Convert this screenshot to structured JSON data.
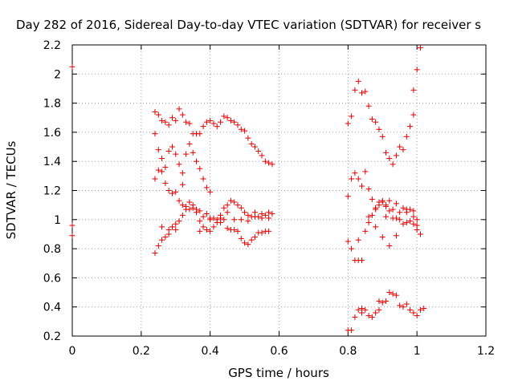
{
  "chart_data": {
    "type": "scatter",
    "title": "Day 282 of 2016, Sidereal Day-to-day VTEC variation (SDTVAR) for receiver s",
    "xlabel": "GPS time / hours",
    "ylabel": "SDTVAR / TECUs",
    "xlim": [
      0,
      1.2
    ],
    "ylim": [
      0.2,
      2.2
    ],
    "xticks": [
      0,
      0.2,
      0.4,
      0.6,
      0.8,
      1,
      1.2
    ],
    "yticks": [
      0.2,
      0.4,
      0.6,
      0.8,
      1,
      1.2,
      1.4,
      1.6,
      1.8,
      2,
      2.2
    ],
    "xtick_labels": [
      "0",
      "0.2",
      "0.4",
      "0.6",
      "0.8",
      "1",
      "1.2"
    ],
    "ytick_labels": [
      "0.2",
      "0.4",
      "0.6",
      "0.8",
      "1",
      "1.2",
      "1.4",
      "1.6",
      "1.8",
      "2",
      "2.2"
    ],
    "grid": true,
    "marker": "plus",
    "color": "#e00000",
    "series": [
      {
        "points": [
          [
            0.0,
            2.05
          ],
          [
            0.0,
            0.96
          ],
          [
            0.0,
            0.89
          ],
          [
            0.24,
            1.74
          ],
          [
            0.25,
            1.72
          ],
          [
            0.26,
            1.68
          ],
          [
            0.27,
            1.67
          ],
          [
            0.28,
            1.65
          ],
          [
            0.29,
            1.7
          ],
          [
            0.3,
            1.68
          ],
          [
            0.31,
            1.76
          ],
          [
            0.32,
            1.72
          ],
          [
            0.33,
            1.67
          ],
          [
            0.34,
            1.66
          ],
          [
            0.35,
            1.59
          ],
          [
            0.36,
            1.59
          ],
          [
            0.37,
            1.59
          ],
          [
            0.38,
            1.64
          ],
          [
            0.39,
            1.67
          ],
          [
            0.4,
            1.68
          ],
          [
            0.41,
            1.66
          ],
          [
            0.42,
            1.64
          ],
          [
            0.43,
            1.67
          ],
          [
            0.44,
            1.71
          ],
          [
            0.45,
            1.7
          ],
          [
            0.46,
            1.68
          ],
          [
            0.47,
            1.67
          ],
          [
            0.48,
            1.65
          ],
          [
            0.49,
            1.62
          ],
          [
            0.5,
            1.61
          ],
          [
            0.51,
            1.56
          ],
          [
            0.52,
            1.52
          ],
          [
            0.53,
            1.5
          ],
          [
            0.54,
            1.47
          ],
          [
            0.55,
            1.44
          ],
          [
            0.56,
            1.4
          ],
          [
            0.57,
            1.39
          ],
          [
            0.58,
            1.38
          ],
          [
            0.24,
            1.59
          ],
          [
            0.25,
            1.48
          ],
          [
            0.26,
            1.42
          ],
          [
            0.27,
            1.36
          ],
          [
            0.28,
            1.47
          ],
          [
            0.29,
            1.5
          ],
          [
            0.3,
            1.45
          ],
          [
            0.31,
            1.38
          ],
          [
            0.32,
            1.32
          ],
          [
            0.33,
            1.45
          ],
          [
            0.34,
            1.52
          ],
          [
            0.35,
            1.46
          ],
          [
            0.36,
            1.4
          ],
          [
            0.37,
            1.35
          ],
          [
            0.38,
            1.28
          ],
          [
            0.39,
            1.22
          ],
          [
            0.4,
            1.19
          ],
          [
            0.24,
            1.28
          ],
          [
            0.25,
            1.34
          ],
          [
            0.26,
            1.33
          ],
          [
            0.27,
            1.25
          ],
          [
            0.28,
            1.2
          ],
          [
            0.29,
            1.18
          ],
          [
            0.3,
            1.19
          ],
          [
            0.31,
            1.13
          ],
          [
            0.32,
            1.1
          ],
          [
            0.33,
            1.09
          ],
          [
            0.34,
            1.07
          ],
          [
            0.35,
            1.08
          ],
          [
            0.36,
            1.05
          ],
          [
            0.37,
            1.06
          ],
          [
            0.38,
            1.02
          ],
          [
            0.39,
            1.04
          ],
          [
            0.4,
            1.01
          ],
          [
            0.41,
            1.01
          ],
          [
            0.42,
            1.0
          ],
          [
            0.43,
            1.01
          ],
          [
            0.44,
            1.0
          ],
          [
            0.45,
            0.94
          ],
          [
            0.46,
            0.93
          ],
          [
            0.47,
            0.93
          ],
          [
            0.48,
            0.92
          ],
          [
            0.49,
            0.87
          ],
          [
            0.5,
            0.84
          ],
          [
            0.51,
            0.83
          ],
          [
            0.52,
            0.86
          ],
          [
            0.53,
            0.88
          ],
          [
            0.54,
            0.91
          ],
          [
            0.55,
            0.91
          ],
          [
            0.56,
            0.92
          ],
          [
            0.57,
            0.92
          ],
          [
            0.24,
            0.77
          ],
          [
            0.25,
            0.82
          ],
          [
            0.26,
            0.86
          ],
          [
            0.27,
            0.88
          ],
          [
            0.28,
            0.9
          ],
          [
            0.29,
            0.95
          ],
          [
            0.3,
            0.93
          ],
          [
            0.31,
            0.99
          ],
          [
            0.32,
            1.03
          ],
          [
            0.33,
            1.07
          ],
          [
            0.34,
            1.12
          ],
          [
            0.35,
            1.1
          ],
          [
            0.36,
            1.07
          ],
          [
            0.37,
            0.99
          ],
          [
            0.38,
            0.95
          ],
          [
            0.39,
            0.93
          ],
          [
            0.4,
            0.92
          ],
          [
            0.41,
            0.95
          ],
          [
            0.42,
            0.98
          ],
          [
            0.43,
            1.03
          ],
          [
            0.44,
            1.08
          ],
          [
            0.45,
            1.1
          ],
          [
            0.46,
            1.13
          ],
          [
            0.47,
            1.12
          ],
          [
            0.48,
            1.1
          ],
          [
            0.49,
            1.08
          ],
          [
            0.5,
            1.05
          ],
          [
            0.51,
            1.03
          ],
          [
            0.52,
            1.02
          ],
          [
            0.53,
            1.05
          ],
          [
            0.54,
            1.02
          ],
          [
            0.55,
            1.01
          ],
          [
            0.56,
            1.03
          ],
          [
            0.57,
            1.05
          ],
          [
            0.58,
            1.04
          ],
          [
            0.32,
            1.24
          ],
          [
            0.37,
            0.92
          ],
          [
            0.4,
            1.0
          ],
          [
            0.43,
            0.98
          ],
          [
            0.45,
            1.05
          ],
          [
            0.47,
            1.0
          ],
          [
            0.49,
            1.0
          ],
          [
            0.51,
            0.99
          ],
          [
            0.53,
            1.02
          ],
          [
            0.55,
            1.04
          ],
          [
            0.57,
            1.01
          ],
          [
            0.26,
            0.95
          ],
          [
            0.28,
            0.93
          ],
          [
            0.3,
            0.97
          ],
          [
            0.8,
            1.66
          ],
          [
            0.81,
            1.71
          ],
          [
            0.82,
            1.89
          ],
          [
            0.83,
            1.95
          ],
          [
            0.84,
            1.87
          ],
          [
            0.85,
            1.88
          ],
          [
            0.86,
            1.78
          ],
          [
            0.87,
            1.69
          ],
          [
            0.88,
            1.67
          ],
          [
            0.89,
            1.62
          ],
          [
            0.9,
            1.57
          ],
          [
            0.91,
            1.46
          ],
          [
            0.92,
            1.42
          ],
          [
            0.93,
            1.38
          ],
          [
            0.94,
            1.44
          ],
          [
            0.95,
            1.5
          ],
          [
            0.96,
            1.48
          ],
          [
            0.97,
            1.57
          ],
          [
            0.98,
            1.64
          ],
          [
            0.99,
            1.72
          ],
          [
            0.99,
            1.89
          ],
          [
            1.0,
            2.03
          ],
          [
            1.01,
            2.18
          ],
          [
            0.8,
            1.16
          ],
          [
            0.81,
            1.28
          ],
          [
            0.82,
            1.32
          ],
          [
            0.83,
            1.28
          ],
          [
            0.84,
            1.23
          ],
          [
            0.85,
            1.33
          ],
          [
            0.86,
            1.21
          ],
          [
            0.87,
            1.14
          ],
          [
            0.88,
            1.07
          ],
          [
            0.89,
            1.1
          ],
          [
            0.9,
            1.12
          ],
          [
            0.91,
            1.1
          ],
          [
            0.92,
            1.13
          ],
          [
            0.93,
            1.07
          ],
          [
            0.94,
            1.11
          ],
          [
            0.95,
            1.05
          ],
          [
            0.96,
            1.08
          ],
          [
            0.97,
            1.05
          ],
          [
            0.98,
            1.07
          ],
          [
            0.99,
            1.06
          ],
          [
            1.0,
            1.0
          ],
          [
            0.8,
            0.85
          ],
          [
            0.81,
            0.8
          ],
          [
            0.82,
            0.72
          ],
          [
            0.83,
            0.72
          ],
          [
            0.84,
            0.72
          ],
          [
            0.85,
            0.92
          ],
          [
            0.86,
            0.98
          ],
          [
            0.87,
            1.03
          ],
          [
            0.88,
            1.08
          ],
          [
            0.89,
            1.12
          ],
          [
            0.9,
            1.13
          ],
          [
            0.91,
            1.09
          ],
          [
            0.92,
            1.06
          ],
          [
            0.93,
            1.01
          ],
          [
            0.94,
            1.01
          ],
          [
            0.95,
            1.0
          ],
          [
            0.96,
            0.97
          ],
          [
            0.97,
            0.98
          ],
          [
            0.98,
            0.99
          ],
          [
            0.99,
            0.97
          ],
          [
            1.0,
            0.93
          ],
          [
            1.01,
            0.9
          ],
          [
            0.8,
            0.24
          ],
          [
            0.81,
            0.24
          ],
          [
            0.82,
            0.33
          ],
          [
            0.83,
            0.38
          ],
          [
            0.84,
            0.36
          ],
          [
            0.85,
            0.38
          ],
          [
            0.86,
            0.34
          ],
          [
            0.87,
            0.33
          ],
          [
            0.88,
            0.36
          ],
          [
            0.89,
            0.38
          ],
          [
            0.9,
            0.43
          ],
          [
            0.91,
            0.44
          ],
          [
            0.92,
            0.5
          ],
          [
            0.93,
            0.49
          ],
          [
            0.94,
            0.48
          ],
          [
            0.95,
            0.41
          ],
          [
            0.96,
            0.4
          ],
          [
            0.97,
            0.42
          ],
          [
            0.98,
            0.38
          ],
          [
            0.99,
            0.36
          ],
          [
            1.0,
            0.34
          ],
          [
            1.01,
            0.38
          ],
          [
            1.02,
            0.39
          ],
          [
            0.83,
            0.86
          ],
          [
            0.88,
            0.95
          ],
          [
            0.9,
            0.88
          ],
          [
            0.92,
            0.82
          ],
          [
            0.94,
            0.89
          ],
          [
            0.97,
            1.07
          ],
          [
            0.99,
            1.02
          ],
          [
            1.0,
            0.96
          ],
          [
            0.86,
            1.02
          ],
          [
            0.91,
            1.02
          ],
          [
            0.84,
            0.39
          ],
          [
            0.89,
            0.44
          ]
        ]
      }
    ]
  }
}
